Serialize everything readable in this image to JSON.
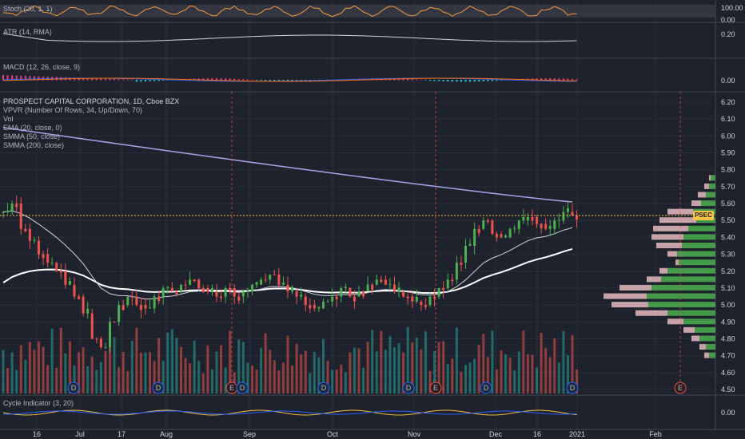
{
  "symbol_badge": "PSEC",
  "stoch": {
    "label": "Stoch (20, 1, 1)",
    "ticks": [
      "100.00",
      "0.00"
    ]
  },
  "atr": {
    "label": "ATR (14, RMA)",
    "ticks": [
      "0.20"
    ]
  },
  "macd": {
    "label": "MACD (12, 26, close, 9)",
    "ticks": [
      "0.00"
    ]
  },
  "main": {
    "title": "PROSPECT CAPITAL CORPORATION, 1D, Cboe BZX",
    "indicators": [
      "VPVR (Number Of Rows, 34, Up/Down, 70)",
      "Vol",
      "EMA (20, close, 0)",
      "SMMA (50, close)",
      "SMMA (200, close)"
    ],
    "price_ticks": [
      "6.20",
      "6.10",
      "6.00",
      "5.90",
      "5.80",
      "5.70",
      "5.60",
      "5.50",
      "5.40",
      "5.30",
      "5.20",
      "5.10",
      "5.00",
      "4.90",
      "4.80",
      "4.70",
      "4.60",
      "4.50"
    ]
  },
  "cycle": {
    "label": "Cycle Indicator (3, 20)",
    "ticks": [
      "0.00"
    ]
  },
  "x_axis": [
    "16",
    "Jul",
    "17",
    "Aug",
    "Sep",
    "Oct",
    "Nov",
    "Dec",
    "16",
    "2021",
    "Feb"
  ],
  "markers": [
    "D",
    "D",
    "E",
    "D",
    "D",
    "D",
    "E",
    "D",
    "D",
    "E"
  ],
  "chart_data": {
    "type": "candlestick",
    "title": "PROSPECT CAPITAL CORPORATION, 1D, Cboe BZX",
    "ylim": [
      4.45,
      6.25
    ],
    "ticker": "PSEC",
    "last_price": 5.53,
    "smma200_end": 5.61,
    "smma50_end": 5.25,
    "ema20_end": 5.45,
    "approx_closes": [
      5.55,
      5.6,
      5.45,
      5.38,
      5.3,
      5.25,
      5.2,
      5.12,
      5.05,
      4.95,
      4.8,
      4.75,
      4.9,
      5.0,
      5.05,
      5.0,
      4.98,
      5.05,
      5.1,
      5.08,
      5.12,
      5.15,
      5.1,
      5.08,
      5.05,
      5.1,
      5.05,
      5.08,
      5.12,
      5.15,
      5.18,
      5.12,
      5.08,
      5.05,
      5.0,
      4.98,
      5.02,
      5.05,
      5.1,
      5.05,
      5.08,
      5.12,
      5.15,
      5.12,
      5.08,
      5.05,
      5.02,
      5.0,
      5.05,
      5.1,
      5.15,
      5.25,
      5.35,
      5.45,
      5.5,
      5.42,
      5.4,
      5.45,
      5.5,
      5.52,
      5.48,
      5.45,
      5.5,
      5.55,
      5.53
    ]
  }
}
